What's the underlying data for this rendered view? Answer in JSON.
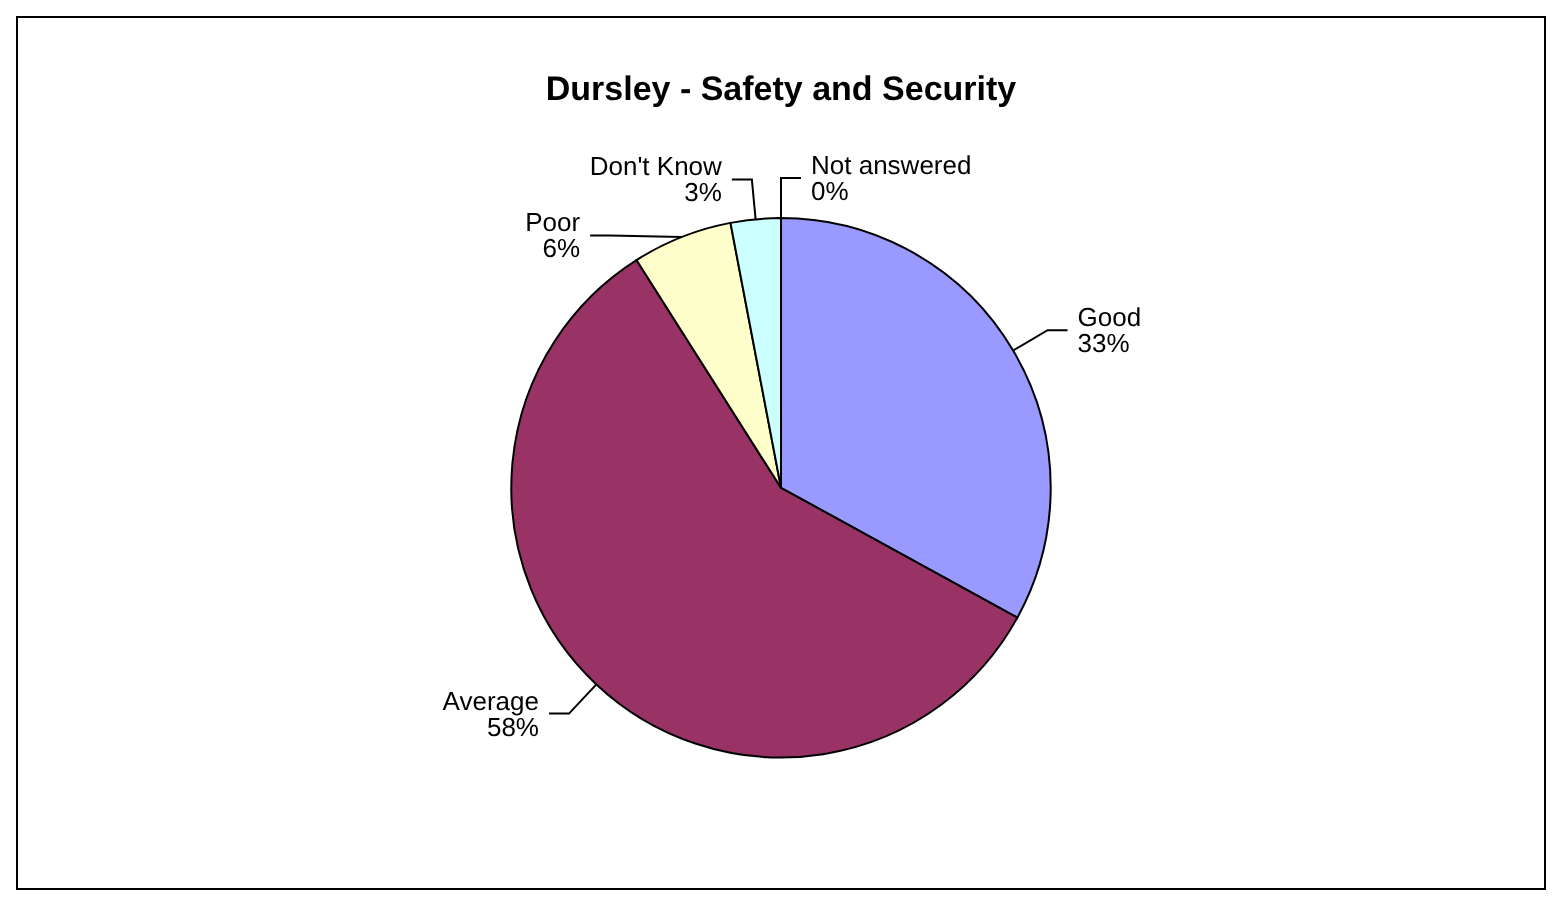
{
  "chart_data": {
    "type": "pie",
    "title": "Dursley - Safety and Security",
    "categories": [
      "Good",
      "Average",
      "Poor",
      "Don't Know",
      "Not answered"
    ],
    "values": [
      33,
      58,
      6,
      3,
      0
    ],
    "value_labels": [
      "33%",
      "58%",
      "6%",
      "3%",
      "0%"
    ],
    "colors": [
      "#9999ff",
      "#993366",
      "#ffffcc",
      "#ccffff",
      "#ffffff"
    ],
    "legend": false
  }
}
